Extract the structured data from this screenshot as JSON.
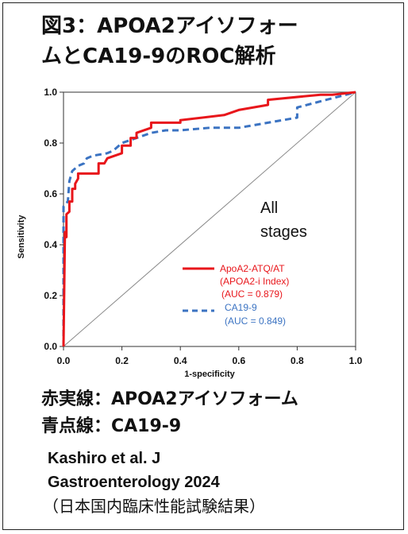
{
  "header": {
    "title_line1": "図3：APOA2アイソフォー",
    "title_line2": "ムとCA19-9のROC解析"
  },
  "chart_data": {
    "type": "line",
    "xlabel": "1-specificity",
    "ylabel": "Sensitivity",
    "xlim": [
      0,
      1.0
    ],
    "ylim": [
      0,
      1.0
    ],
    "x_ticks": [
      "0.0",
      "0.2",
      "0.4",
      "0.6",
      "0.8",
      "1.0"
    ],
    "y_ticks": [
      "0.0",
      "0.2",
      "0.4",
      "0.6",
      "0.8",
      "1.0"
    ],
    "annotation": [
      "All",
      "stages"
    ],
    "reference_line": [
      [
        0,
        0
      ],
      [
        1,
        1
      ]
    ],
    "legend_position": "center-right",
    "series": [
      {
        "name": "ApoA2-ATQ/AT",
        "label_lines": [
          "ApoA2-ATQ/AT",
          "(APOA2-i Index)",
          "(AUC = 0.879)"
        ],
        "color": "#e8161b",
        "style": "solid",
        "points": [
          [
            0,
            0
          ],
          [
            0.005,
            0.45
          ],
          [
            0.01,
            0.43
          ],
          [
            0.01,
            0.52
          ],
          [
            0.02,
            0.53
          ],
          [
            0.02,
            0.57
          ],
          [
            0.03,
            0.57
          ],
          [
            0.03,
            0.62
          ],
          [
            0.04,
            0.62
          ],
          [
            0.04,
            0.64
          ],
          [
            0.05,
            0.66
          ],
          [
            0.05,
            0.68
          ],
          [
            0.12,
            0.68
          ],
          [
            0.12,
            0.72
          ],
          [
            0.14,
            0.72
          ],
          [
            0.15,
            0.74
          ],
          [
            0.2,
            0.76
          ],
          [
            0.2,
            0.79
          ],
          [
            0.23,
            0.79
          ],
          [
            0.23,
            0.82
          ],
          [
            0.25,
            0.82
          ],
          [
            0.25,
            0.84
          ],
          [
            0.3,
            0.86
          ],
          [
            0.3,
            0.88
          ],
          [
            0.4,
            0.88
          ],
          [
            0.4,
            0.89
          ],
          [
            0.55,
            0.91
          ],
          [
            0.6,
            0.93
          ],
          [
            0.7,
            0.95
          ],
          [
            0.7,
            0.97
          ],
          [
            0.88,
            0.99
          ],
          [
            0.9,
            0.99
          ],
          [
            0.92,
            0.99
          ],
          [
            1.0,
            1.0
          ]
        ]
      },
      {
        "name": "CA19-9",
        "label_lines": [
          "CA19-9",
          "(AUC = 0.849)"
        ],
        "color": "#3b73c2",
        "style": "dashed",
        "points": [
          [
            0,
            0
          ],
          [
            0,
            0.55
          ],
          [
            0.005,
            0.56
          ],
          [
            0.015,
            0.57
          ],
          [
            0.02,
            0.65
          ],
          [
            0.03,
            0.69
          ],
          [
            0.05,
            0.71
          ],
          [
            0.07,
            0.72
          ],
          [
            0.08,
            0.74
          ],
          [
            0.1,
            0.75
          ],
          [
            0.15,
            0.76
          ],
          [
            0.17,
            0.77
          ],
          [
            0.2,
            0.8
          ],
          [
            0.25,
            0.82
          ],
          [
            0.3,
            0.84
          ],
          [
            0.35,
            0.85
          ],
          [
            0.4,
            0.85
          ],
          [
            0.5,
            0.86
          ],
          [
            0.6,
            0.86
          ],
          [
            0.7,
            0.88
          ],
          [
            0.8,
            0.9
          ],
          [
            0.8,
            0.94
          ],
          [
            0.9,
            0.97
          ],
          [
            1.0,
            1.0
          ]
        ]
      }
    ]
  },
  "captions": {
    "red_line": "赤実線：APOA2アイソフォーム",
    "blue_line": "青点線：CA19-9"
  },
  "citation": {
    "line1": "Kashiro et al. J",
    "line2": "Gastroenterology  2024",
    "line3": "（日本国内臨床性能試験結果）"
  }
}
